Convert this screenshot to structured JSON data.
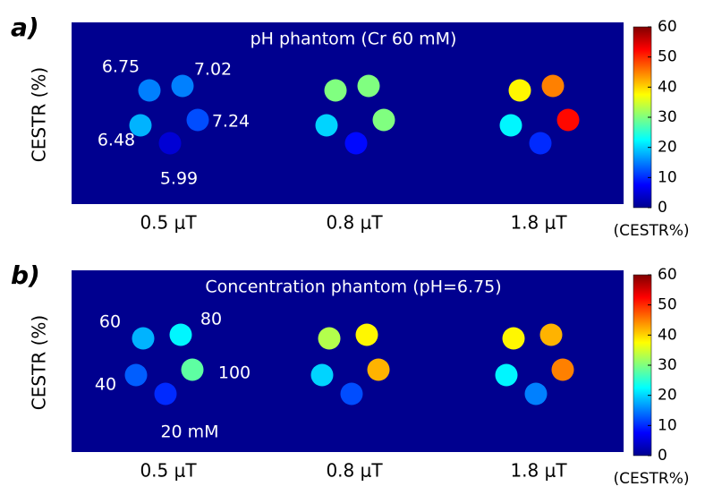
{
  "panels": [
    {
      "label": "a)",
      "title": "pH phantom (Cr 60 mM)",
      "ylabel": "CESTR (%)",
      "fields": [
        "0.5 μT",
        "0.8 μT",
        "1.8 μT"
      ],
      "vial_labels": [
        "6.75",
        "7.02",
        "7.24",
        "5.99",
        "6.48"
      ],
      "cestr": [
        [
          15,
          15,
          12,
          5,
          18
        ],
        [
          30,
          30,
          30,
          8,
          20
        ],
        [
          38,
          45,
          52,
          10,
          22
        ]
      ],
      "colorbar": {
        "lim": [
          0,
          60
        ],
        "ticks": [
          0,
          10,
          20,
          30,
          40,
          50,
          60
        ],
        "label": "(CESTR%)"
      }
    },
    {
      "label": "b)",
      "title": "Concentration phantom (pH=6.75)",
      "ylabel": "CESTR (%)",
      "fields": [
        "0.5 μT",
        "0.8 μT",
        "1.8 μT"
      ],
      "vial_labels": [
        "60",
        "80",
        "100",
        "20 mM",
        "40"
      ],
      "cestr": [
        [
          18,
          22,
          28,
          10,
          13
        ],
        [
          33,
          38,
          42,
          12,
          20
        ],
        [
          38,
          42,
          45,
          15,
          22
        ]
      ],
      "colorbar": {
        "lim": [
          0,
          60
        ],
        "ticks": [
          0,
          10,
          20,
          30,
          40,
          50,
          60
        ],
        "label": "(CESTR%)"
      }
    }
  ]
}
